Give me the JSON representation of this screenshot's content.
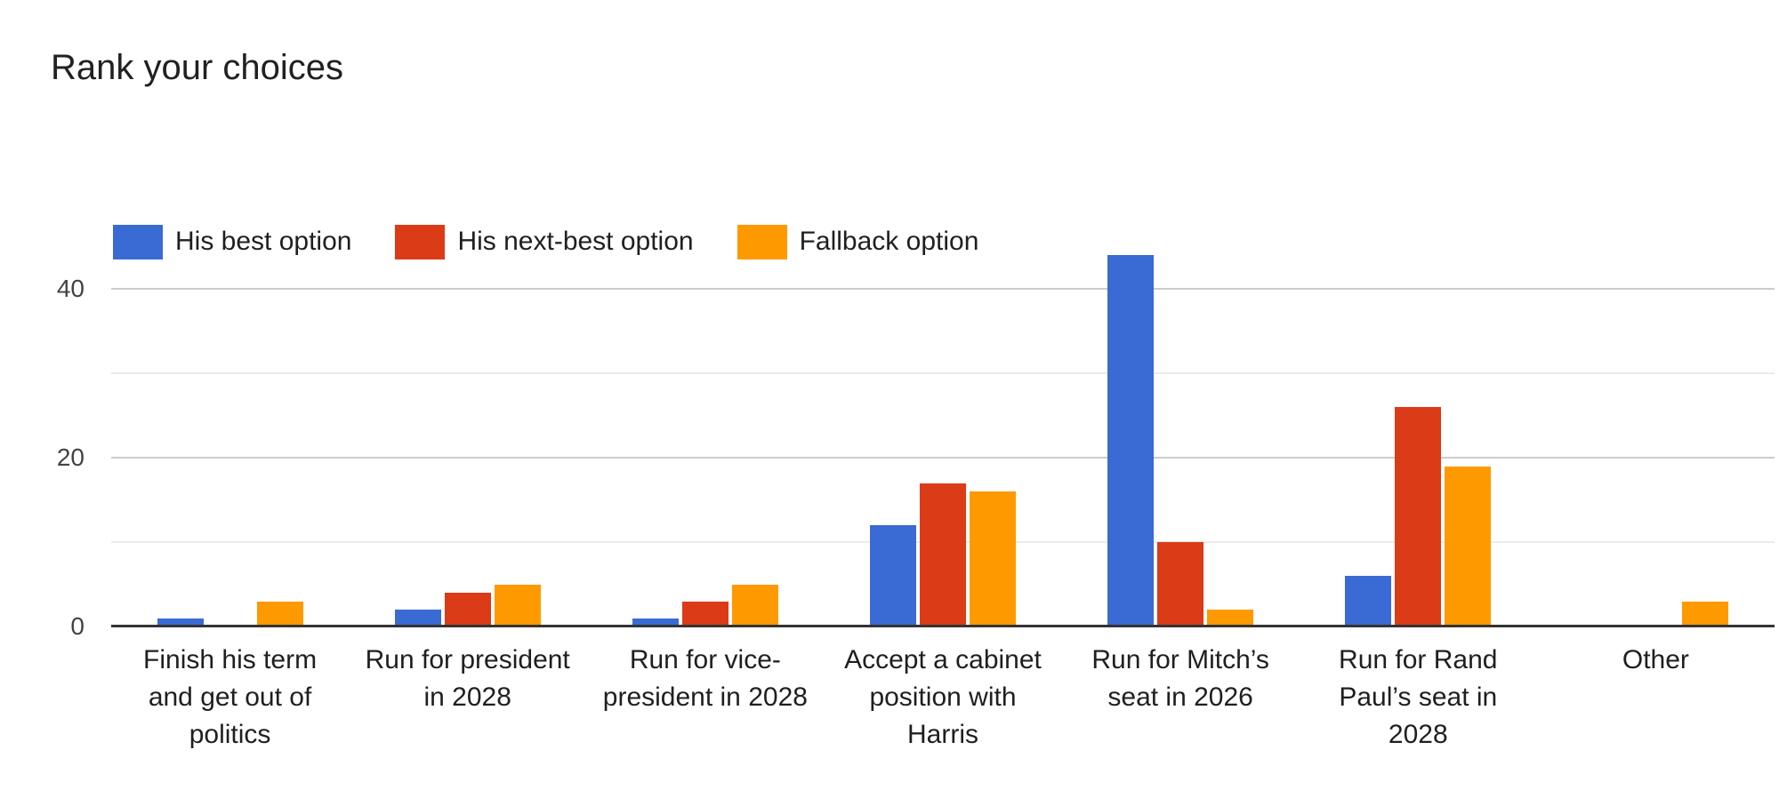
{
  "chart_data": {
    "type": "bar",
    "title": "Rank your choices",
    "xlabel": "",
    "ylabel": "",
    "legend_position": "top",
    "grid": true,
    "categories": [
      "Finish his term and get out of politics",
      "Run for president in 2028",
      "Run for vice-president in 2028",
      "Accept a cabinet position with Harris",
      "Run for Mitch’s seat in 2026",
      "Run for Rand Paul’s seat in 2028",
      "Other"
    ],
    "category_lines": [
      [
        "Finish his term",
        "and get out of",
        "politics"
      ],
      [
        "Run for president",
        "in 2028"
      ],
      [
        "Run for vice-",
        "president in 2028"
      ],
      [
        "Accept a cabinet",
        "position with",
        "Harris"
      ],
      [
        "Run for Mitch’s",
        "seat in 2026"
      ],
      [
        "Run for Rand",
        "Paul’s seat in",
        "2028"
      ],
      [
        "Other"
      ]
    ],
    "series": [
      {
        "name": "His best option",
        "color": "#3a6ad4",
        "values": [
          1,
          2,
          1,
          12,
          44,
          6,
          0
        ]
      },
      {
        "name": "His next-best option",
        "color": "#db3b17",
        "values": [
          0,
          4,
          3,
          17,
          10,
          26,
          0
        ]
      },
      {
        "name": "Fallback option",
        "color": "#ff9900",
        "values": [
          3,
          5,
          5,
          16,
          2,
          19,
          3
        ]
      }
    ],
    "y_axis": {
      "min": 0,
      "ticks": [
        {
          "label": "0",
          "value": 0
        },
        {
          "label": "20",
          "value": 20
        },
        {
          "label": "40",
          "value": 40
        }
      ],
      "gridlines": [
        {
          "value": 10,
          "style": "minor"
        },
        {
          "value": 20,
          "style": "major"
        },
        {
          "value": 30,
          "style": "minor"
        },
        {
          "value": 40,
          "style": "major"
        }
      ]
    },
    "colors": {
      "axis_line": "#333333",
      "gridline_major": "#cccccc",
      "gridline_minor": "#ebebeb",
      "title_text": "#212121",
      "tick_text": "#434343",
      "category_text": "#1f1f1f"
    }
  }
}
